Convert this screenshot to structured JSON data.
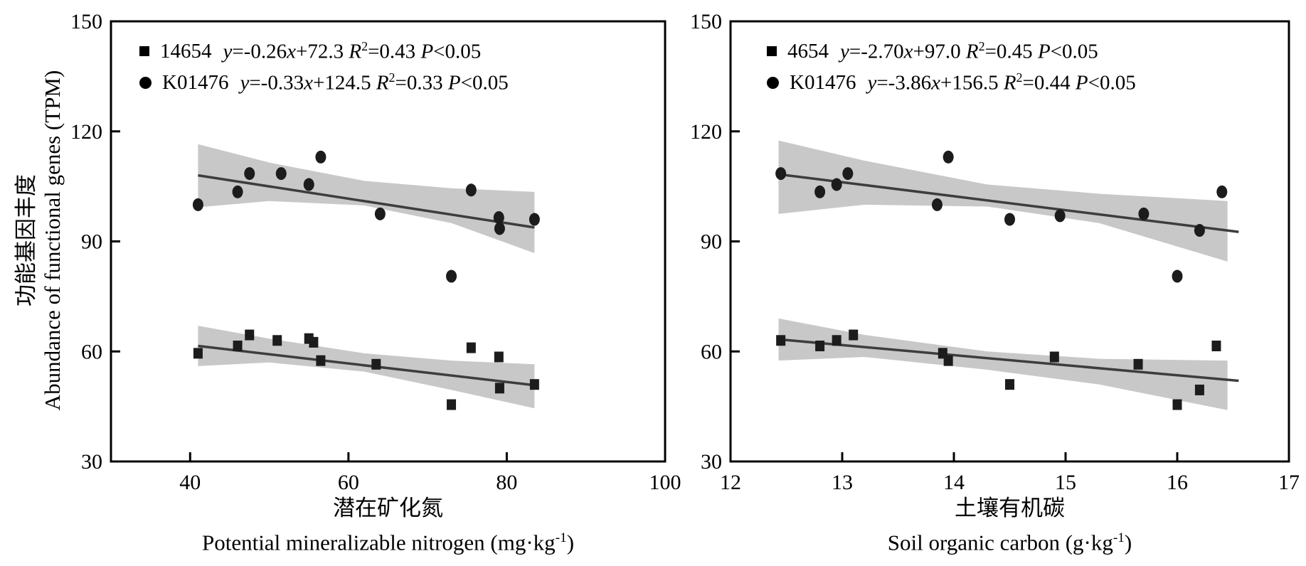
{
  "colors": {
    "background": "#ffffff",
    "band": "#c8c8c8",
    "fit_line": "#3d3d3d",
    "marker": "#1c1c1c",
    "axis": "#000000",
    "text": "#000000"
  },
  "chart_data": [
    {
      "type": "scatter",
      "panel": "left",
      "xlabel_zh": "潜在矿化氮",
      "xlabel_en": "Potential mineralizable nitrogen (mg·kg-1)",
      "ylabel_zh": "功能基因丰度",
      "ylabel_en": "Abundance of functional genes (TPM)",
      "xlim": [
        30,
        100
      ],
      "xticks": [
        40,
        60,
        80,
        100
      ],
      "ylim": [
        30,
        150
      ],
      "yticks": [
        30,
        60,
        90,
        120,
        150
      ],
      "grid": false,
      "legend_position": "top-left",
      "series": [
        {
          "name": "14654",
          "marker": "square",
          "equation_text": "y=-0.26x+72.3 R2=0.43 P<0.05",
          "r_squared": 0.43,
          "p_value": "<0.05",
          "points": [
            [
              41,
              59.5
            ],
            [
              46,
              61.5
            ],
            [
              47.5,
              64.5
            ],
            [
              51,
              63
            ],
            [
              55,
              63.5
            ],
            [
              55.6,
              62.5
            ],
            [
              56.5,
              57.5
            ],
            [
              63.5,
              56.5
            ],
            [
              73,
              45.5
            ],
            [
              75.5,
              61
            ],
            [
              79,
              58.5
            ],
            [
              79.1,
              50
            ],
            [
              83.5,
              51
            ]
          ],
          "fit_line": {
            "x1": 41,
            "y1": 61.5,
            "x2": 83.5,
            "y2": 50.8
          },
          "band": {
            "x": [
              41,
              50,
              62,
              73,
              83.5
            ],
            "top": [
              67.0,
              63.5,
              59.5,
              57.5,
              56.5
            ],
            "bottom": [
              56.0,
              57.0,
              54.5,
              49.5,
              44.5
            ]
          }
        },
        {
          "name": "K01476",
          "marker": "circle",
          "equation_text": "y=-0.33x+124.5 R2=0.33 P<0.05",
          "r_squared": 0.33,
          "p_value": "<0.05",
          "points": [
            [
              41,
              100
            ],
            [
              46,
              103.5
            ],
            [
              47.5,
              108.5
            ],
            [
              51.5,
              108.5
            ],
            [
              55,
              105.5
            ],
            [
              56.5,
              113
            ],
            [
              64,
              97.5
            ],
            [
              73,
              80.5
            ],
            [
              75.5,
              104
            ],
            [
              79,
              96.5
            ],
            [
              79.1,
              93.5
            ],
            [
              83.5,
              96
            ]
          ],
          "fit_line": {
            "x1": 41,
            "y1": 108.0,
            "x2": 83.5,
            "y2": 93.8
          },
          "band": {
            "x": [
              41,
              50,
              62,
              73,
              83.5
            ],
            "top": [
              116.5,
              111.5,
              106.5,
              104.5,
              103.5
            ],
            "bottom": [
              99.3,
              101.0,
              99.8,
              95.0,
              86.8
            ]
          }
        }
      ]
    },
    {
      "type": "scatter",
      "panel": "right",
      "xlabel_zh": "土壤有机碳",
      "xlabel_en": "Soil organic carbon (g·kg-1)",
      "ylabel_zh": "功能基因丰度",
      "ylabel_en": "Abundance of functional genes (TPM)",
      "xlim": [
        12,
        17
      ],
      "xticks": [
        12,
        13,
        14,
        15,
        16,
        17
      ],
      "ylim": [
        30,
        150
      ],
      "yticks": [
        30,
        60,
        90,
        120,
        150
      ],
      "grid": false,
      "legend_position": "top-left",
      "series": [
        {
          "name": "4654",
          "marker": "square",
          "equation_text": "y=-2.70x+97.0 R2=0.45 P<0.05",
          "r_squared": 0.45,
          "p_value": "<0.05",
          "points": [
            [
              12.45,
              63
            ],
            [
              12.8,
              61.5
            ],
            [
              12.95,
              63
            ],
            [
              13.1,
              64.5
            ],
            [
              13.9,
              59.5
            ],
            [
              13.95,
              57.5
            ],
            [
              14.5,
              51
            ],
            [
              14.9,
              58.5
            ],
            [
              15.65,
              56.5
            ],
            [
              16,
              45.5
            ],
            [
              16.2,
              49.5
            ],
            [
              16.35,
              61.5
            ]
          ],
          "fit_line": {
            "x1": 12.43,
            "y1": 63.3,
            "x2": 16.55,
            "y2": 52.0
          },
          "band": {
            "x": [
              12.43,
              13.2,
              14.3,
              15.3,
              16.45
            ],
            "top": [
              69.0,
              64.5,
              60.0,
              58.0,
              57.5
            ],
            "bottom": [
              57.5,
              58.5,
              55.0,
              51.0,
              44.0
            ]
          }
        },
        {
          "name": "K01476",
          "marker": "circle",
          "equation_text": "y=-3.86x+156.5 R2=0.44 P<0.05",
          "r_squared": 0.44,
          "p_value": "<0.05",
          "points": [
            [
              12.45,
              108.5
            ],
            [
              12.8,
              103.5
            ],
            [
              12.95,
              105.5
            ],
            [
              13.05,
              108.5
            ],
            [
              13.85,
              100
            ],
            [
              13.95,
              113
            ],
            [
              14.5,
              96
            ],
            [
              14.95,
              97
            ],
            [
              15.7,
              97.5
            ],
            [
              16,
              80.5
            ],
            [
              16.2,
              93
            ],
            [
              16.4,
              103.5
            ]
          ],
          "fit_line": {
            "x1": 12.43,
            "y1": 108.3,
            "x2": 16.55,
            "y2": 92.6
          },
          "band": {
            "x": [
              12.43,
              13.2,
              14.3,
              15.3,
              16.45
            ],
            "top": [
              117.5,
              112.0,
              105.5,
              103.0,
              101.0
            ],
            "bottom": [
              97.5,
              100.0,
              99.5,
              95.0,
              84.5
            ]
          }
        }
      ]
    }
  ]
}
